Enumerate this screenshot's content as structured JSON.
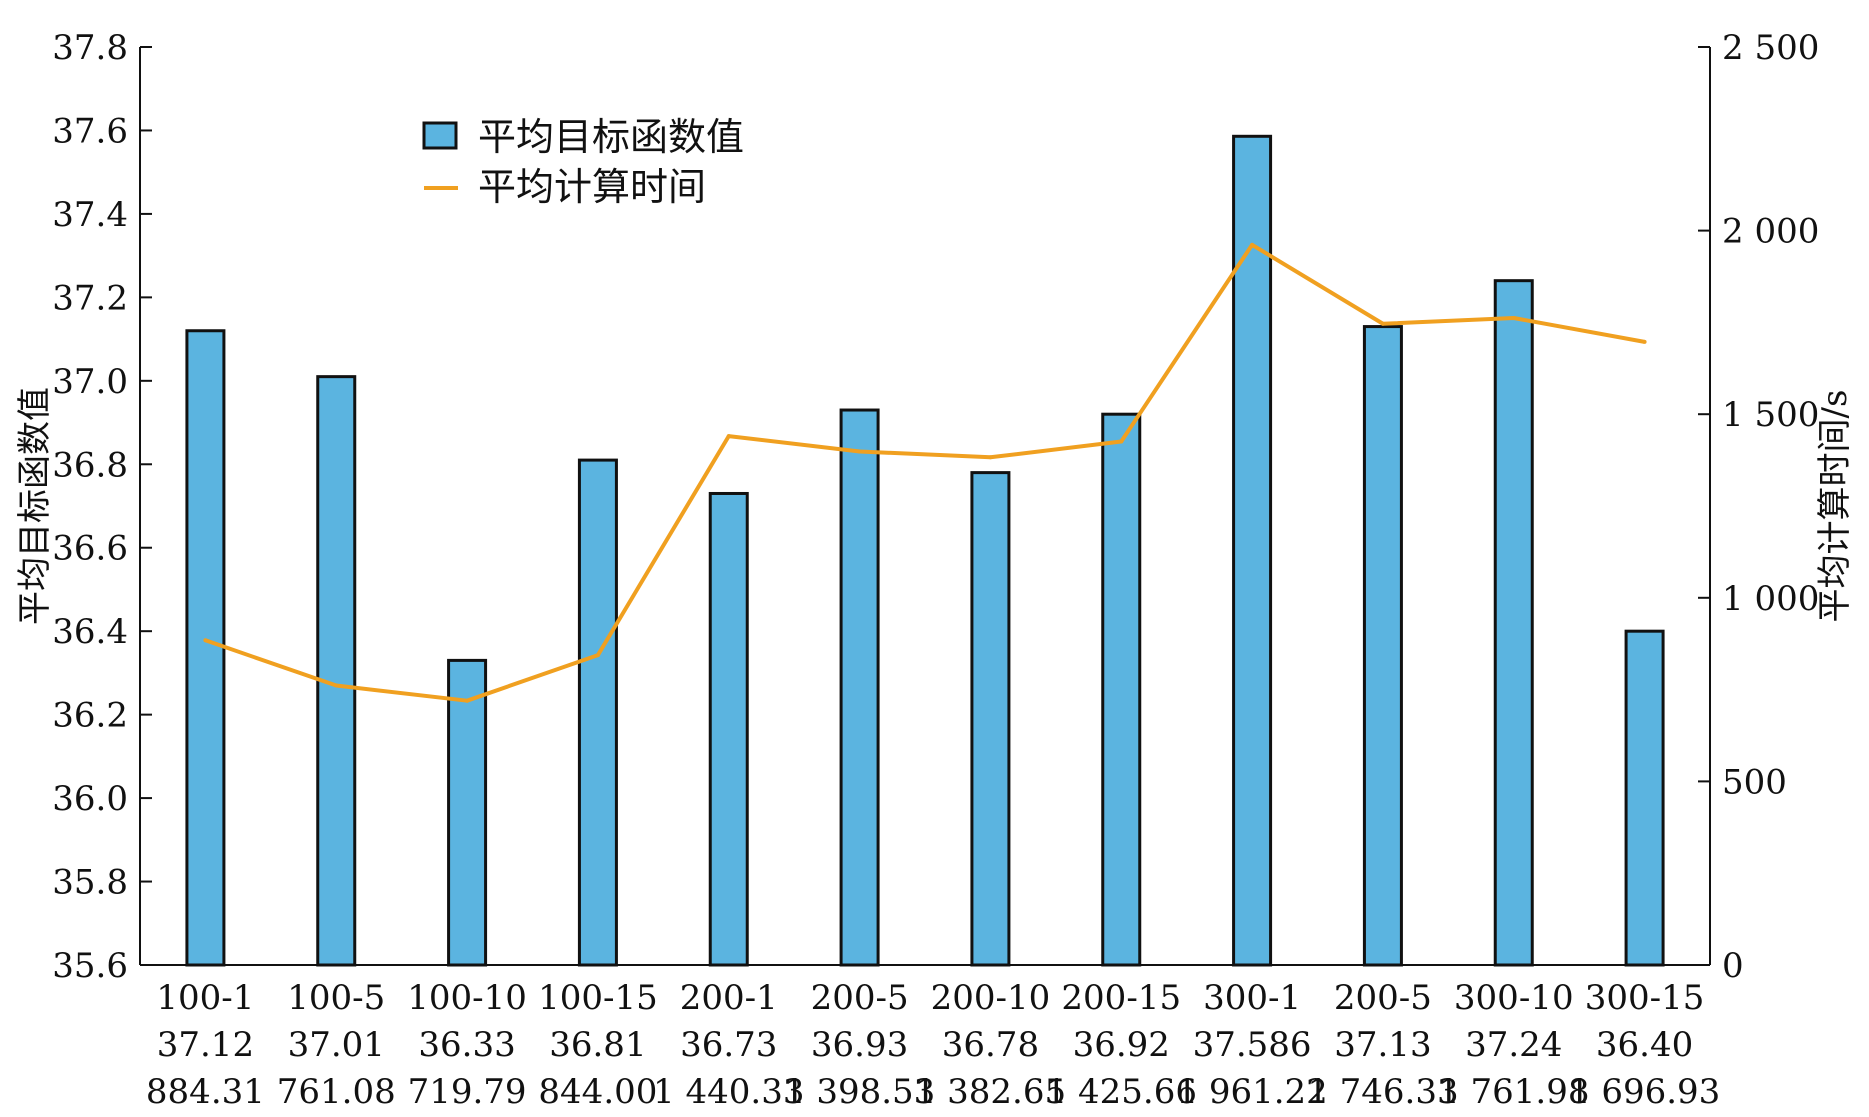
{
  "chart_data": {
    "type": "bar",
    "categories": [
      "100-1",
      "100-5",
      "100-10",
      "100-15",
      "200-1",
      "200-5",
      "200-10",
      "200-15",
      "300-1",
      "200-5",
      "300-10",
      "300-15"
    ],
    "bar_labels": [
      "37.12",
      "37.01",
      "36.33",
      "36.81",
      "36.73",
      "36.93",
      "36.78",
      "36.92",
      "37.586",
      "37.13",
      "37.24",
      "36.40"
    ],
    "line_labels": [
      "884.31",
      "761.08",
      "719.79",
      "844.00",
      "1 440.33",
      "1 398.53",
      "1 382.65",
      "1 425.66",
      "1 961.22",
      "1 746.33",
      "1 761.98",
      "1 696.93"
    ],
    "series": [
      {
        "name": "平均目标函数值",
        "type": "bar",
        "axis": "left",
        "values": [
          37.12,
          37.01,
          36.33,
          36.81,
          36.73,
          36.93,
          36.78,
          36.92,
          37.586,
          37.13,
          37.24,
          36.4
        ],
        "color": "#5BB4E0"
      },
      {
        "name": "平均计算时间",
        "type": "line",
        "axis": "right",
        "values": [
          884.31,
          761.08,
          719.79,
          844.0,
          1440.33,
          1398.53,
          1382.65,
          1425.66,
          1961.22,
          1746.33,
          1761.98,
          1696.93
        ],
        "color": "#F0A020"
      }
    ],
    "ylabel": "平均目标函数值",
    "y2label": "平均计算时间/s",
    "ylim": [
      35.6,
      37.8
    ],
    "y2lim": [
      0,
      2500
    ],
    "yticks": [
      "35.6",
      "35.8",
      "36.0",
      "36.2",
      "36.4",
      "36.6",
      "36.8",
      "37.0",
      "37.2",
      "37.4",
      "37.6",
      "37.8"
    ],
    "y2ticks": [
      "0",
      "500",
      "1 000",
      "1 500",
      "2 000",
      "2 500"
    ],
    "legend_position": "top-left",
    "grid": false
  }
}
